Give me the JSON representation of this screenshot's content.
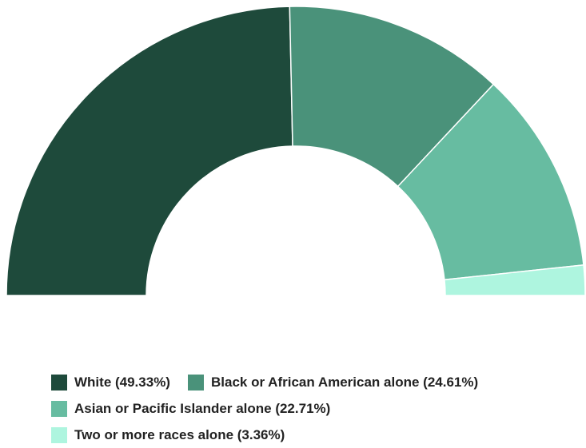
{
  "chart_data": {
    "type": "pie",
    "variant": "semi-donut",
    "title": "",
    "legend_position": "bottom",
    "slices": [
      {
        "label": "White (49.33%)",
        "name": "White",
        "value": 49.33,
        "color": "#1e4a3b"
      },
      {
        "label": "Black or African American alone (24.61%)",
        "name": "Black or African American alone",
        "value": 24.61,
        "color": "#4a927a"
      },
      {
        "label": "Asian or Pacific Islander alone (22.71%)",
        "name": "Asian or Pacific Islander alone",
        "value": 22.71,
        "color": "#67bca1"
      },
      {
        "label": "Two or more races alone (3.36%)",
        "name": "Two or more races alone",
        "value": 3.36,
        "color": "#aef5df"
      }
    ]
  }
}
